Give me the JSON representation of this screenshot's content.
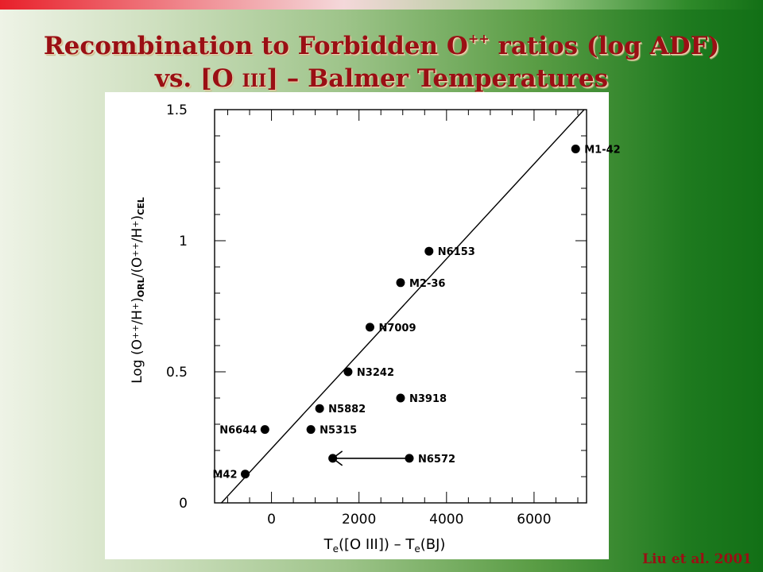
{
  "slide": {
    "title_line1_pre": "Recombination to Forbidden O",
    "title_line1_sup": "++",
    "title_line1_post": " ratios (log ADF)",
    "title_line2_pre": "vs. [O ",
    "title_line2_sc": "III",
    "title_line2_post": "] – Balmer Temperatures",
    "credit": "Liu et al. 2001"
  },
  "chart_data": {
    "type": "scatter",
    "ylabel_parts": [
      "Log  (O",
      "++",
      "/H",
      "+",
      ")",
      "ORL",
      "/(O",
      "++",
      "/H",
      "+",
      ")",
      "CEL"
    ],
    "xlabel_parts": [
      "T",
      "e",
      "([O  III])  –  T",
      "e",
      "(BJ)"
    ],
    "xlim": [
      -1300,
      7200
    ],
    "ylim": [
      0,
      1.5
    ],
    "x_ticks": [
      {
        "value": 0,
        "label": "0"
      },
      {
        "value": 2000,
        "label": "2000"
      },
      {
        "value": 4000,
        "label": "4000"
      },
      {
        "value": 6000,
        "label": "6000"
      }
    ],
    "y_ticks": [
      {
        "value": 0,
        "label": "0"
      },
      {
        "value": 0.5,
        "label": "0.5"
      },
      {
        "value": 1,
        "label": "1"
      },
      {
        "value": 1.5,
        "label": "1.5"
      }
    ],
    "points": [
      {
        "label": "M42",
        "x": -600,
        "y": 0.11,
        "side": "left"
      },
      {
        "label": "N6644",
        "x": -150,
        "y": 0.28,
        "side": "left"
      },
      {
        "label": "N5315",
        "x": 900,
        "y": 0.28,
        "side": "right"
      },
      {
        "label": "N5882",
        "x": 1100,
        "y": 0.36,
        "side": "right"
      },
      {
        "label": "N3242",
        "x": 1750,
        "y": 0.5,
        "side": "right"
      },
      {
        "label": "N7009",
        "x": 2250,
        "y": 0.67,
        "side": "right"
      },
      {
        "label": "M2-36",
        "x": 2950,
        "y": 0.84,
        "side": "right"
      },
      {
        "label": "N6153",
        "x": 3600,
        "y": 0.96,
        "side": "right"
      },
      {
        "label": "N3918",
        "x": 2950,
        "y": 0.4,
        "side": "right"
      },
      {
        "label": "N6572",
        "x": 3150,
        "y": 0.17,
        "side": "right"
      },
      {
        "label": "M1-42",
        "x": 6950,
        "y": 1.35,
        "side": "right"
      }
    ],
    "upper_limit_arrow": {
      "from_x": 3150,
      "to_x": 1400,
      "y": 0.17
    },
    "fit_line": {
      "x": [
        -1200,
        7200
      ],
      "y": [
        -0.01,
        1.51
      ]
    }
  }
}
